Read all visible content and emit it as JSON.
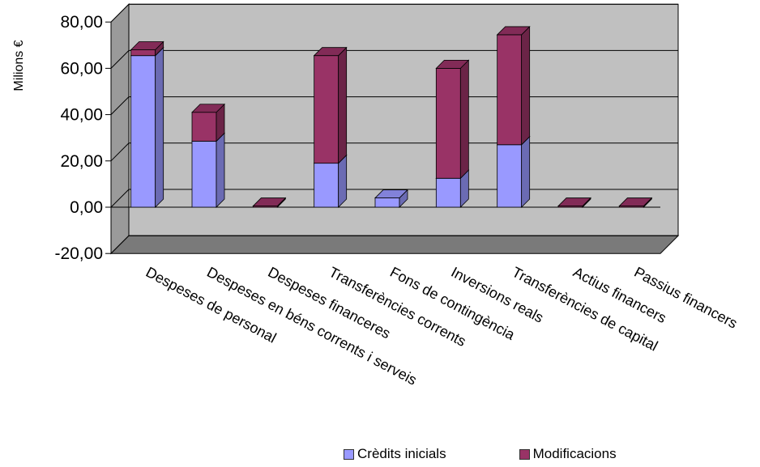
{
  "chart_data": {
    "type": "bar",
    "stacked": true,
    "three_d": true,
    "ylabel": "Milions €",
    "ylim": [
      -20,
      80
    ],
    "yticks": [
      "-20,00",
      "0,00",
      "20,00",
      "40,00",
      "60,00",
      "80,00"
    ],
    "ytick_values": [
      -20,
      0,
      20,
      40,
      60,
      80
    ],
    "grid": true,
    "legend_position": "bottom",
    "categories": [
      "Despeses de personal",
      "Despeses en béns corrents i serveis",
      "Despeses financeres",
      "Transferències corrents",
      "Fons de contingència",
      "Inversions reals",
      "Transferències de capital",
      "Actius financers",
      "Passius financers"
    ],
    "series": [
      {
        "name": "Crèdits inicials",
        "color": "#9999ff",
        "values": [
          65.5,
          28.5,
          0,
          19.0,
          4.0,
          12.5,
          27.0,
          0,
          0
        ]
      },
      {
        "name": "Modificacions",
        "color": "#993366",
        "values": [
          2.5,
          12.5,
          0.5,
          46.5,
          0,
          47.5,
          47.5,
          0.5,
          0.5
        ]
      }
    ]
  }
}
